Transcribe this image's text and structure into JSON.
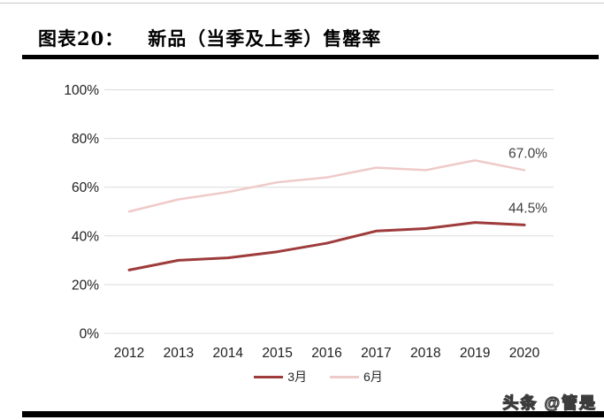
{
  "figure": {
    "label": "图表20：",
    "title": "新品（当季及上季）售罄率"
  },
  "chart_data": {
    "type": "line",
    "categories": [
      "2012",
      "2013",
      "2014",
      "2015",
      "2016",
      "2017",
      "2018",
      "2019",
      "2020"
    ],
    "series": [
      {
        "name": "3月",
        "color": "#9E3B3B",
        "width": 3,
        "values": [
          26,
          30,
          31,
          33.5,
          37,
          42,
          43,
          45.5,
          44.5
        ],
        "end_label": "44.5%"
      },
      {
        "name": "6月",
        "color": "#EECAC8",
        "width": 2.5,
        "values": [
          50,
          55,
          58,
          62,
          64,
          68,
          67,
          71,
          67
        ],
        "end_label": "67.0%"
      }
    ],
    "ylim": [
      0,
      100
    ],
    "yticks": {
      "values": [
        0,
        20,
        40,
        60,
        80,
        100
      ],
      "labels": [
        "0%",
        "20%",
        "40%",
        "60%",
        "80%",
        "100%"
      ]
    },
    "grid": true,
    "legend_position": "bottom",
    "colors": {
      "gridline": "#DCDCDC",
      "axis_text": "#212121",
      "end_label_text": "#404040"
    }
  },
  "watermark": "头条 @管是"
}
